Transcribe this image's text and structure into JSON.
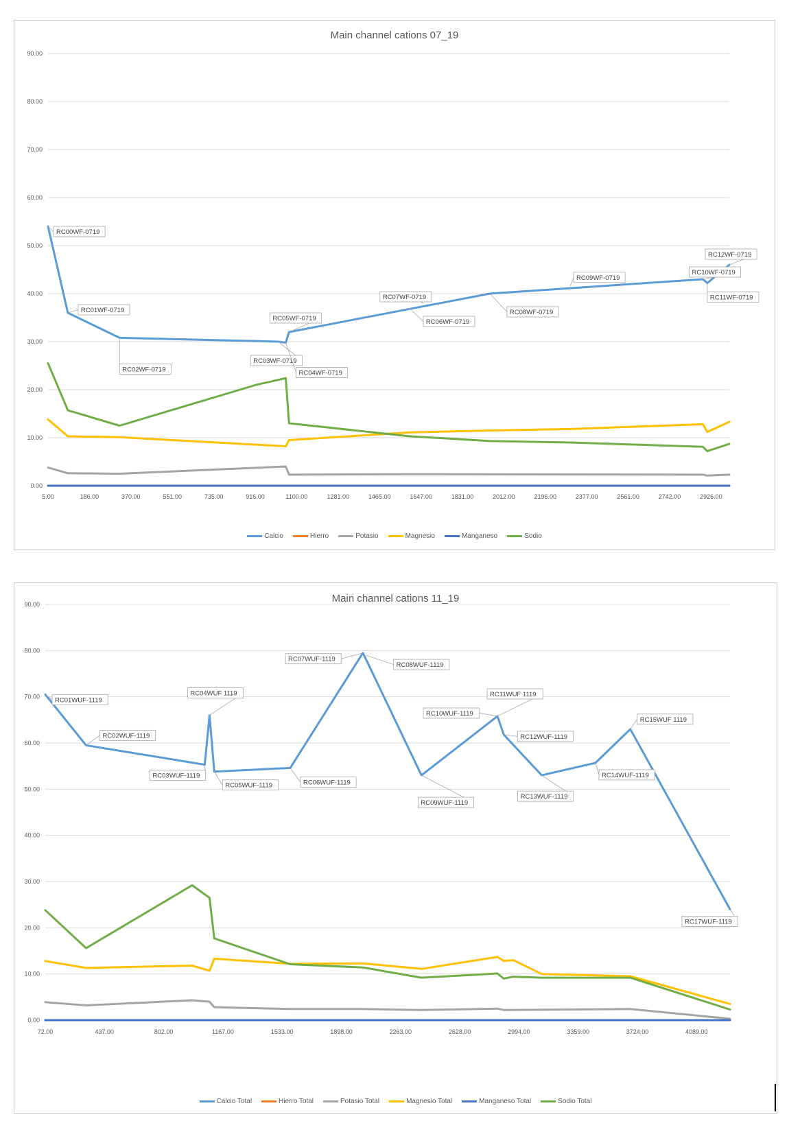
{
  "chart_data": [
    {
      "type": "line",
      "title": "Main channel cations 07_19",
      "ylim": [
        0,
        90
      ],
      "yticks": [
        "0.00",
        "10.00",
        "20.00",
        "30.00",
        "40.00",
        "50.00",
        "60.00",
        "70.00",
        "80.00",
        "90.00"
      ],
      "xlim": [
        5,
        3100
      ],
      "xticks": [
        "5.00",
        "186.00",
        "370.00",
        "551.00",
        "735.00",
        "916.00",
        "1100.00",
        "1281.00",
        "1465.00",
        "1647.00",
        "1831.00",
        "2012.00",
        "2196.00",
        "2377.00",
        "2561.00",
        "2742.00",
        "2926.00"
      ],
      "series": [
        {
          "name": "Calcio",
          "color": "#5b9bd5",
          "x": [
            5,
            95,
            330,
            1050,
            1085,
            1100,
            2012,
            2980,
            3000,
            3100
          ],
          "y": [
            54.0,
            36.0,
            30.8,
            30.0,
            29.8,
            32.0,
            40.0,
            43.0,
            42.2,
            46.0
          ]
        },
        {
          "name": "Hierro",
          "color": "#ed7d31",
          "x": [
            5,
            3100
          ],
          "y": [
            0.0,
            0.0
          ]
        },
        {
          "name": "Potasio",
          "color": "#a5a5a5",
          "x": [
            5,
            95,
            330,
            1085,
            1100,
            1647,
            2980,
            3000,
            3100
          ],
          "y": [
            3.8,
            2.6,
            2.5,
            4.0,
            2.3,
            2.4,
            2.3,
            2.1,
            2.3
          ]
        },
        {
          "name": "Magnesio",
          "color": "#ffc000",
          "x": [
            5,
            95,
            330,
            1050,
            1085,
            1100,
            1647,
            2012,
            2377,
            2980,
            3000,
            3100
          ],
          "y": [
            13.8,
            10.3,
            10.1,
            8.3,
            8.2,
            9.5,
            11.1,
            11.5,
            11.8,
            12.8,
            11.2,
            13.3
          ]
        },
        {
          "name": "Manganeso",
          "color": "#4472c4",
          "x": [
            5,
            3100
          ],
          "y": [
            0.0,
            0.0
          ]
        },
        {
          "name": "Sodio",
          "color": "#70ad47",
          "x": [
            5,
            95,
            330,
            950,
            1085,
            1100,
            1647,
            2012,
            2377,
            2980,
            3000,
            3100
          ],
          "y": [
            25.5,
            15.7,
            12.5,
            21.0,
            22.4,
            13.0,
            10.3,
            9.3,
            9.0,
            8.1,
            7.2,
            8.7
          ]
        }
      ],
      "annotations": [
        {
          "label": "RC00WF-0719",
          "x": 5,
          "y": 54.0
        },
        {
          "label": "RC01WF-0719",
          "x": 95,
          "y": 36.0
        },
        {
          "label": "RC02WF-0719",
          "x": 330,
          "y": 30.8
        },
        {
          "label": "RC03WF-0719",
          "x": 1050,
          "y": 30.0
        },
        {
          "label": "RC04WF-0719",
          "x": 1085,
          "y": 29.8
        },
        {
          "label": "RC05WF-0719",
          "x": 1100,
          "y": 32.0
        },
        {
          "label": "RC06WF-0719",
          "x": 1647,
          "y": 37.0
        },
        {
          "label": "RC07WF-0719",
          "x": 1700,
          "y": 38.0
        },
        {
          "label": "RC08WF-0719",
          "x": 2012,
          "y": 40.0
        },
        {
          "label": "RC09WF-0719",
          "x": 2377,
          "y": 41.6
        },
        {
          "label": "RC10WF-0719",
          "x": 2980,
          "y": 43.0
        },
        {
          "label": "RC11WF-0719",
          "x": 3000,
          "y": 42.2
        },
        {
          "label": "RC12WF-0719",
          "x": 3100,
          "y": 46.0
        }
      ],
      "legend": [
        "Calcio",
        "Hierro",
        "Potasio",
        "Magnesio",
        "Manganeso",
        "Sodio"
      ]
    },
    {
      "type": "line",
      "title": "Main channel cations 11_19",
      "ylim": [
        0,
        90
      ],
      "yticks": [
        "0.00",
        "10.00",
        "20.00",
        "30.00",
        "40.00",
        "50.00",
        "60.00",
        "70.00",
        "80.00",
        "90.00"
      ],
      "xlim": [
        72,
        4400
      ],
      "xticks": [
        "72.00",
        "437.00",
        "802.00",
        "1167.00",
        "1533.00",
        "1898.00",
        "2263.00",
        "2628.00",
        "2994.00",
        "3359.00",
        "3724.00",
        "4089.00"
      ],
      "series": [
        {
          "name": "Calcio Total",
          "color": "#5b9bd5",
          "x": [
            72,
            330,
            1080,
            1110,
            1140,
            1620,
            2080,
            2450,
            2930,
            2970,
            3210,
            3550,
            3770,
            4400
          ],
          "y": [
            70.5,
            59.5,
            55.3,
            66.0,
            53.8,
            54.6,
            79.5,
            53.0,
            65.8,
            61.8,
            53.0,
            55.7,
            63.0,
            24.0
          ]
        },
        {
          "name": "Hierro Total",
          "color": "#ed7d31",
          "x": [
            72,
            4400
          ],
          "y": [
            0.0,
            0.0
          ]
        },
        {
          "name": "Potasio Total",
          "color": "#a5a5a5",
          "x": [
            72,
            330,
            1000,
            1110,
            1140,
            1620,
            2080,
            2450,
            2930,
            2970,
            3770,
            4400
          ],
          "y": [
            3.9,
            3.2,
            4.3,
            4.0,
            2.8,
            2.4,
            2.4,
            2.2,
            2.5,
            2.2,
            2.4,
            0.3
          ]
        },
        {
          "name": "Magnesio Total",
          "color": "#ffc000",
          "x": [
            72,
            330,
            1000,
            1110,
            1140,
            1620,
            2080,
            2450,
            2930,
            2970,
            3030,
            3210,
            3770,
            4400
          ],
          "y": [
            12.8,
            11.3,
            11.8,
            10.7,
            13.3,
            12.2,
            12.3,
            11.1,
            13.7,
            12.8,
            13.0,
            10.0,
            9.5,
            3.5
          ]
        },
        {
          "name": "Manganeso Total",
          "color": "#4472c4",
          "x": [
            72,
            4400
          ],
          "y": [
            0.0,
            0.0
          ]
        },
        {
          "name": "Sodio Total",
          "color": "#70ad47",
          "x": [
            72,
            330,
            1000,
            1110,
            1140,
            1620,
            2080,
            2450,
            2930,
            2970,
            3030,
            3210,
            3770,
            4400
          ],
          "y": [
            23.8,
            15.6,
            29.2,
            26.5,
            17.7,
            12.1,
            11.4,
            9.2,
            10.1,
            9.0,
            9.4,
            9.2,
            9.2,
            2.3
          ]
        }
      ],
      "annotations": [
        {
          "label": "RC01WUF-1119",
          "x": 72,
          "y": 70.5
        },
        {
          "label": "RC02WUF-1119",
          "x": 330,
          "y": 59.5
        },
        {
          "label": "RC03WUF-1119",
          "x": 1080,
          "y": 55.3
        },
        {
          "label": "RC04WUF 1119",
          "x": 1110,
          "y": 66.0
        },
        {
          "label": "RC05WUF-1119",
          "x": 1140,
          "y": 53.8
        },
        {
          "label": "RC06WUF-1119",
          "x": 1620,
          "y": 54.6
        },
        {
          "label": "RC07WUF-1119",
          "x": 2080,
          "y": 79.5
        },
        {
          "label": "RC08WUF-1119",
          "x": 2100,
          "y": 79.0
        },
        {
          "label": "RC09WUF-1119",
          "x": 2450,
          "y": 53.0
        },
        {
          "label": "RC10WUF-1119",
          "x": 2930,
          "y": 65.8
        },
        {
          "label": "RC11WUF 1119",
          "x": 2930,
          "y": 65.8
        },
        {
          "label": "RC12WUF-1119",
          "x": 2970,
          "y": 61.8
        },
        {
          "label": "RC13WUF-1119",
          "x": 3210,
          "y": 53.0
        },
        {
          "label": "RC14WUF-1119",
          "x": 3550,
          "y": 55.7
        },
        {
          "label": "RC15WUF 1119",
          "x": 3770,
          "y": 63.0
        },
        {
          "label": "RC17WUF-1119",
          "x": 4400,
          "y": 24.0
        }
      ],
      "legend": [
        "Calcio Total",
        "Hierro Total",
        "Potasio Total",
        "Magnesio Total",
        "Manganeso Total",
        "Sodio Total"
      ]
    }
  ]
}
